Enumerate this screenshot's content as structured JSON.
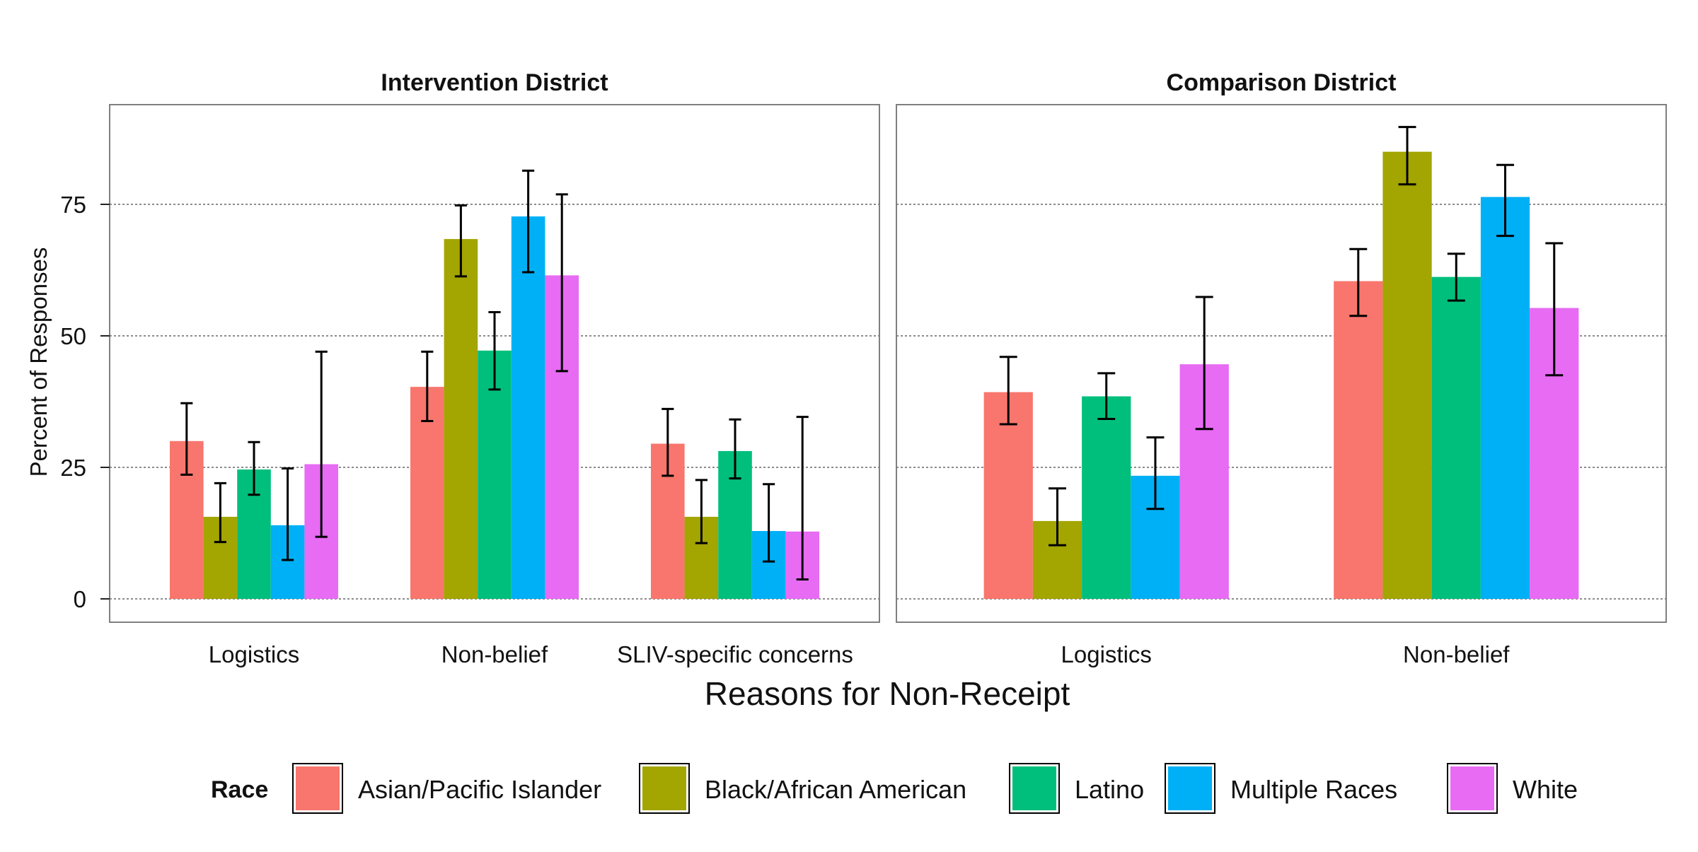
{
  "chart_data": {
    "type": "bar",
    "xlabel": "Reasons for Non-Receipt",
    "ylabel": "Percent of Responses",
    "ylim": [
      -3.5,
      75.5
    ],
    "yticks": [
      0,
      25,
      50,
      75
    ],
    "grid": "horizontal dotted",
    "legend": {
      "position": "bottom",
      "title": "Race",
      "entries": [
        {
          "name": "Asian/Pacific Islander",
          "color": "#F8766D"
        },
        {
          "name": "Black/African American",
          "color": "#A3A500"
        },
        {
          "name": "Latino",
          "color": "#00BF7D"
        },
        {
          "name": "Multiple Races",
          "color": "#00B0F6"
        },
        {
          "name": "White",
          "color": "#E76BF3"
        }
      ]
    },
    "panels": [
      {
        "title": "Intervention District",
        "categories": [
          "Logistics",
          "Non-belief",
          "SLIV-specific concerns"
        ],
        "series": [
          {
            "name": "Asian/Pacific Islander",
            "values": [
              30.0,
              40.3,
              29.5
            ],
            "err_low": [
              23.6,
              33.8,
              23.4
            ],
            "err_high": [
              37.2,
              47.0,
              36.1
            ]
          },
          {
            "name": "Black/African American",
            "values": [
              15.6,
              68.4,
              15.6
            ],
            "err_low": [
              10.8,
              61.3,
              10.6
            ],
            "err_high": [
              22.0,
              74.8,
              22.6
            ]
          },
          {
            "name": "Latino",
            "values": [
              24.6,
              47.2,
              28.1
            ],
            "err_low": [
              19.8,
              39.8,
              22.9
            ],
            "err_high": [
              29.8,
              54.5,
              34.1
            ]
          },
          {
            "name": "Multiple Races",
            "values": [
              14.0,
              72.7,
              12.9
            ],
            "err_low": [
              7.4,
              62.1,
              7.1
            ],
            "err_high": [
              24.8,
              81.4,
              21.8
            ]
          },
          {
            "name": "White",
            "values": [
              25.6,
              61.5,
              12.8
            ],
            "err_low": [
              11.8,
              43.3,
              3.7
            ],
            "err_high": [
              47.0,
              76.9,
              34.6
            ]
          }
        ]
      },
      {
        "title": "Comparison District",
        "categories": [
          "Logistics",
          "Non-belief"
        ],
        "series": [
          {
            "name": "Asian/Pacific Islander",
            "values": [
              39.3,
              60.4
            ],
            "err_low": [
              33.2,
              53.8
            ],
            "err_high": [
              46.0,
              66.5
            ]
          },
          {
            "name": "Black/African American",
            "values": [
              14.8,
              85.0
            ],
            "err_low": [
              10.2,
              78.8
            ],
            "err_high": [
              21.0,
              89.7
            ]
          },
          {
            "name": "Latino",
            "values": [
              38.5,
              61.2
            ],
            "err_low": [
              34.2,
              56.7
            ],
            "err_high": [
              42.9,
              65.6
            ]
          },
          {
            "name": "Multiple Races",
            "values": [
              23.4,
              76.4
            ],
            "err_low": [
              17.1,
              69.0
            ],
            "err_high": [
              30.7,
              82.5
            ]
          },
          {
            "name": "White",
            "values": [
              44.6,
              55.3
            ],
            "err_low": [
              32.3,
              42.5
            ],
            "err_high": [
              57.4,
              67.6
            ]
          }
        ]
      }
    ]
  }
}
